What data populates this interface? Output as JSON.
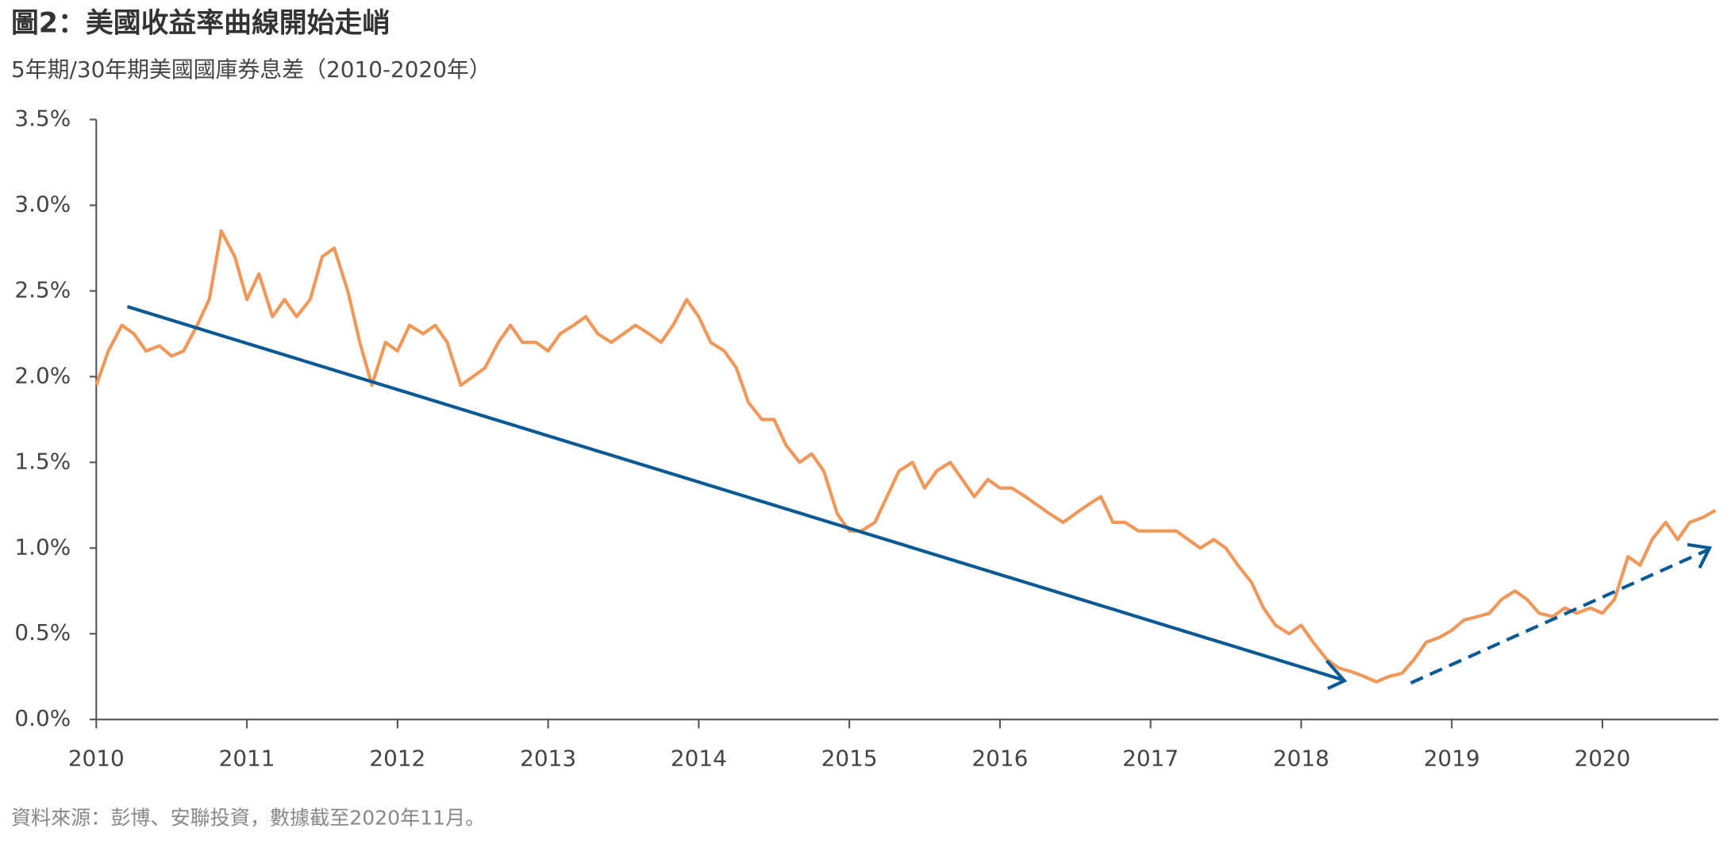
{
  "chart_data": {
    "type": "line",
    "title": "圖2：美國收益率曲線開始走峭",
    "subtitle": "5年期/30年期美國國庫券息差（2010-2020年）",
    "source": "資料來源：彭博、安聯投資，數據截至2020年11月。",
    "x": [
      2010.0,
      2010.08,
      2010.17,
      2010.25,
      2010.33,
      2010.42,
      2010.5,
      2010.58,
      2010.67,
      2010.75,
      2010.83,
      2010.92,
      2011.0,
      2011.08,
      2011.17,
      2011.25,
      2011.33,
      2011.42,
      2011.5,
      2011.58,
      2011.67,
      2011.75,
      2011.83,
      2011.92,
      2012.0,
      2012.08,
      2012.17,
      2012.25,
      2012.33,
      2012.42,
      2012.5,
      2012.58,
      2012.67,
      2012.75,
      2012.83,
      2012.92,
      2013.0,
      2013.08,
      2013.17,
      2013.25,
      2013.33,
      2013.42,
      2013.5,
      2013.58,
      2013.67,
      2013.75,
      2013.83,
      2013.92,
      2014.0,
      2014.08,
      2014.17,
      2014.25,
      2014.33,
      2014.42,
      2014.5,
      2014.58,
      2014.67,
      2014.75,
      2014.83,
      2014.92,
      2015.0,
      2015.08,
      2015.17,
      2015.25,
      2015.33,
      2015.42,
      2015.5,
      2015.58,
      2015.67,
      2015.75,
      2015.83,
      2015.92,
      2016.0,
      2016.08,
      2016.17,
      2016.25,
      2016.33,
      2016.42,
      2016.5,
      2016.58,
      2016.67,
      2016.75,
      2016.83,
      2016.92,
      2017.0,
      2017.08,
      2017.17,
      2017.25,
      2017.33,
      2017.42,
      2017.5,
      2017.58,
      2017.67,
      2017.75,
      2017.83,
      2017.92,
      2018.0,
      2018.08,
      2018.17,
      2018.25,
      2018.33,
      2018.42,
      2018.5,
      2018.58,
      2018.67,
      2018.75,
      2018.83,
      2018.92,
      2019.0,
      2019.08,
      2019.17,
      2019.25,
      2019.33,
      2019.42,
      2019.5,
      2019.58,
      2019.67,
      2019.75,
      2019.83,
      2019.92,
      2020.0,
      2020.08,
      2020.17,
      2020.25,
      2020.33,
      2020.42,
      2020.5,
      2020.58,
      2020.67,
      2020.75
    ],
    "series": [
      {
        "color": "#f0985a",
        "values": [
          1.95,
          2.15,
          2.3,
          2.25,
          2.15,
          2.18,
          2.12,
          2.15,
          2.3,
          2.45,
          2.85,
          2.7,
          2.45,
          2.6,
          2.35,
          2.45,
          2.35,
          2.45,
          2.7,
          2.75,
          2.5,
          2.2,
          1.95,
          2.2,
          2.15,
          2.3,
          2.25,
          2.3,
          2.2,
          1.95,
          2.0,
          2.05,
          2.2,
          2.3,
          2.2,
          2.2,
          2.15,
          2.25,
          2.3,
          2.35,
          2.25,
          2.2,
          2.25,
          2.3,
          2.25,
          2.2,
          2.3,
          2.45,
          2.35,
          2.2,
          2.15,
          2.05,
          1.85,
          1.75,
          1.75,
          1.6,
          1.5,
          1.55,
          1.45,
          1.2,
          1.1,
          1.1,
          1.15,
          1.3,
          1.45,
          1.5,
          1.35,
          1.45,
          1.5,
          1.4,
          1.3,
          1.4,
          1.35,
          1.35,
          1.3,
          1.25,
          1.2,
          1.15,
          1.2,
          1.25,
          1.3,
          1.15,
          1.15,
          1.1,
          1.1,
          1.1,
          1.1,
          1.05,
          1.0,
          1.05,
          1.0,
          0.9,
          0.8,
          0.65,
          0.55,
          0.5,
          0.55,
          0.45,
          0.35,
          0.3,
          0.28,
          0.25,
          0.22,
          0.25,
          0.27,
          0.35,
          0.45,
          0.48,
          0.52,
          0.58,
          0.6,
          0.62,
          0.7,
          0.75,
          0.7,
          0.62,
          0.6,
          0.65,
          0.62,
          0.65,
          0.62,
          0.7,
          0.95,
          0.9,
          1.05,
          1.15,
          1.05,
          1.15,
          1.18,
          1.22
        ]
      }
    ],
    "xlim": [
      2010,
      2020.77
    ],
    "xticks": [
      2010,
      2011,
      2012,
      2013,
      2014,
      2015,
      2016,
      2017,
      2018,
      2019,
      2020
    ],
    "ylim": [
      0,
      3.5
    ],
    "yticks": [
      {
        "value": 0,
        "label": "0.0%"
      },
      {
        "value": 0.5,
        "label": "0.5%"
      },
      {
        "value": 1,
        "label": "1.0%"
      },
      {
        "value": 1.5,
        "label": "1.5%"
      },
      {
        "value": 2,
        "label": "2.0%"
      },
      {
        "value": 2.5,
        "label": "2.5%"
      },
      {
        "value": 3,
        "label": "3.0%"
      },
      {
        "value": 3.5,
        "label": "3.5%"
      }
    ]
  }
}
